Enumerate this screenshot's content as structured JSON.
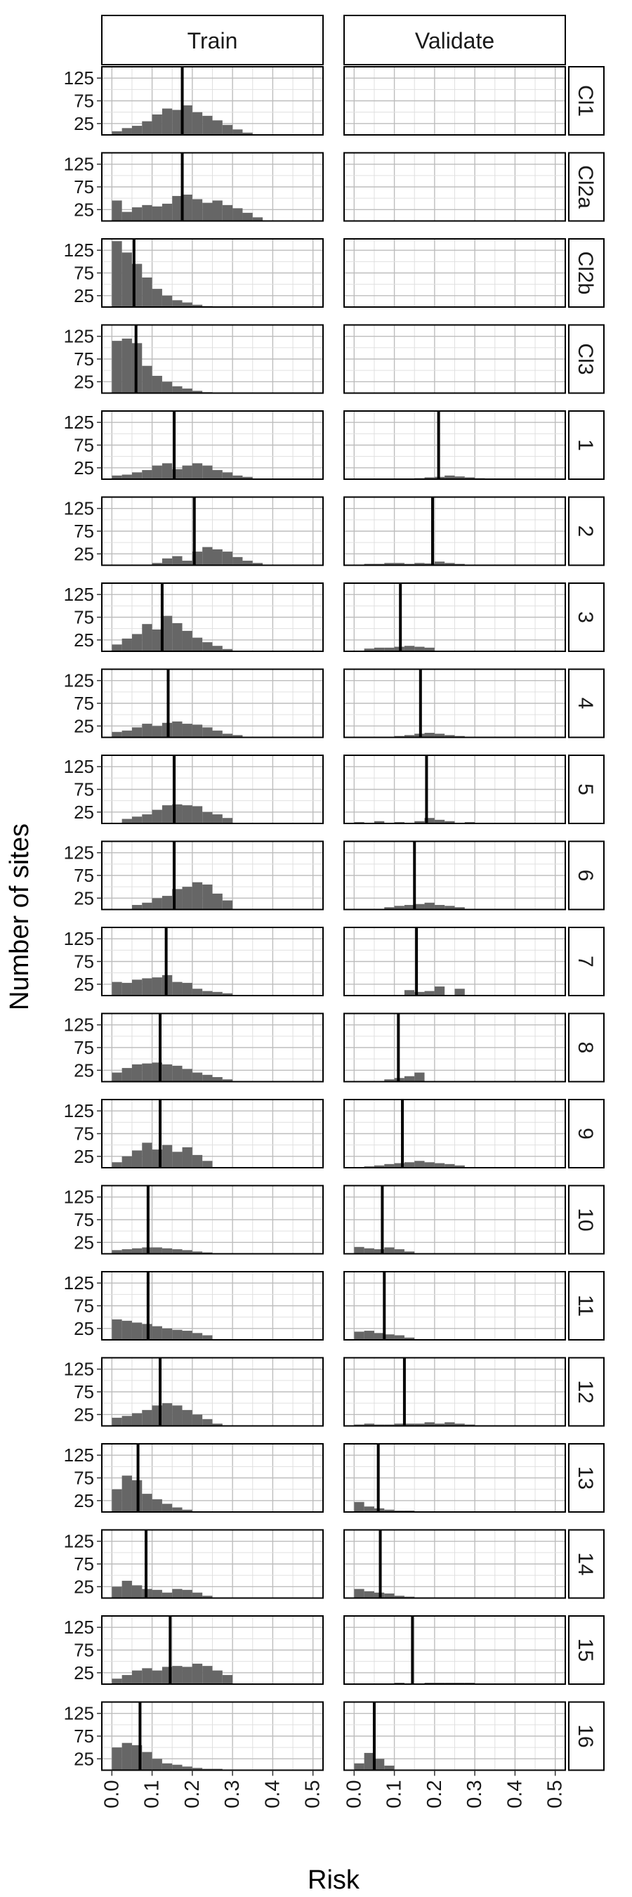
{
  "chart_data": {
    "type": "histogram",
    "facet_layout": "grid",
    "columns": [
      "Train",
      "Validate"
    ],
    "rows": [
      "Cl1",
      "Cl2a",
      "Cl2b",
      "Cl3",
      "1",
      "2",
      "3",
      "4",
      "5",
      "6",
      "7",
      "8",
      "9",
      "10",
      "11",
      "12",
      "13",
      "14",
      "15",
      "16"
    ],
    "ylabel": "Number of sites",
    "xlabel": "Risk",
    "xlim": [
      -0.025,
      0.525
    ],
    "ylim": [
      0,
      150
    ],
    "x_ticks": [
      "0.0",
      "0.1",
      "0.2",
      "0.3",
      "0.4",
      "0.5"
    ],
    "y_ticks": [
      "25",
      "75",
      "125"
    ],
    "bin_width": 0.025,
    "bin_starts": [
      0.0,
      0.025,
      0.05,
      0.075,
      0.1,
      0.125,
      0.15,
      0.175,
      0.2,
      0.225,
      0.25,
      0.275,
      0.3,
      0.325,
      0.35,
      0.375,
      0.4,
      0.425,
      0.45,
      0.475,
      0.5
    ],
    "grid": true,
    "colors": {
      "bar": "#666666",
      "panel_grid_major": "#bdbdbd",
      "panel_grid_minor": "#e0e0e0",
      "strip_bg": "#ffffff",
      "border": "#000000",
      "mean_line": "#000000"
    },
    "panels": [
      {
        "row": "Cl1",
        "column": "Train",
        "mean": 0.175,
        "counts": [
          8,
          15,
          20,
          30,
          45,
          58,
          55,
          65,
          50,
          42,
          32,
          22,
          12,
          5,
          0,
          0,
          0,
          0,
          0,
          0,
          0
        ]
      },
      {
        "row": "Cl1",
        "column": "Validate",
        "mean": null,
        "counts": []
      },
      {
        "row": "Cl2a",
        "column": "Train",
        "mean": 0.175,
        "counts": [
          45,
          20,
          30,
          35,
          32,
          38,
          55,
          58,
          48,
          40,
          45,
          35,
          28,
          18,
          8,
          0,
          0,
          0,
          0,
          0,
          0
        ]
      },
      {
        "row": "Cl2a",
        "column": "Validate",
        "mean": null,
        "counts": []
      },
      {
        "row": "Cl2b",
        "column": "Train",
        "mean": 0.055,
        "counts": [
          145,
          120,
          95,
          65,
          40,
          25,
          15,
          10,
          5,
          2,
          0,
          0,
          0,
          0,
          0,
          0,
          0,
          0,
          0,
          0,
          0
        ]
      },
      {
        "row": "Cl2b",
        "column": "Validate",
        "mean": null,
        "counts": []
      },
      {
        "row": "Cl3",
        "column": "Train",
        "mean": 0.06,
        "counts": [
          115,
          120,
          110,
          60,
          38,
          25,
          15,
          10,
          5,
          2,
          0,
          0,
          0,
          0,
          0,
          0,
          0,
          0,
          0,
          0,
          0
        ]
      },
      {
        "row": "Cl3",
        "column": "Validate",
        "mean": null,
        "counts": []
      },
      {
        "row": "1",
        "column": "Train",
        "mean": 0.155,
        "counts": [
          8,
          10,
          15,
          20,
          30,
          35,
          22,
          30,
          35,
          30,
          20,
          15,
          8,
          5,
          0,
          0,
          0,
          0,
          0,
          0,
          0
        ]
      },
      {
        "row": "1",
        "column": "Validate",
        "mean": 0.21,
        "counts": [
          0,
          0,
          0,
          0,
          0,
          0,
          2,
          4,
          5,
          8,
          6,
          4,
          2,
          0,
          0,
          0,
          0,
          0,
          0,
          0,
          0
        ]
      },
      {
        "row": "2",
        "column": "Train",
        "mean": 0.205,
        "counts": [
          0,
          0,
          0,
          0,
          5,
          15,
          20,
          10,
          30,
          40,
          35,
          30,
          18,
          10,
          5,
          0,
          0,
          0,
          0,
          0,
          0
        ]
      },
      {
        "row": "2",
        "column": "Validate",
        "mean": 0.195,
        "counts": [
          0,
          3,
          3,
          5,
          5,
          3,
          5,
          4,
          8,
          5,
          3,
          0,
          0,
          0,
          0,
          0,
          0,
          0,
          0,
          0,
          0
        ]
      },
      {
        "row": "3",
        "column": "Train",
        "mean": 0.125,
        "counts": [
          15,
          28,
          38,
          60,
          48,
          78,
          62,
          45,
          30,
          20,
          12,
          5,
          0,
          0,
          0,
          0,
          0,
          0,
          0,
          0,
          0
        ]
      },
      {
        "row": "3",
        "column": "Validate",
        "mean": 0.115,
        "counts": [
          0,
          6,
          8,
          8,
          10,
          12,
          10,
          8,
          0,
          0,
          0,
          0,
          0,
          0,
          0,
          0,
          0,
          0,
          0,
          0,
          0
        ]
      },
      {
        "row": "4",
        "column": "Train",
        "mean": 0.14,
        "counts": [
          12,
          15,
          22,
          30,
          25,
          32,
          35,
          30,
          28,
          22,
          15,
          8,
          5,
          0,
          0,
          0,
          0,
          0,
          0,
          0,
          0
        ]
      },
      {
        "row": "4",
        "column": "Validate",
        "mean": 0.165,
        "counts": [
          0,
          0,
          0,
          0,
          3,
          5,
          8,
          10,
          8,
          5,
          3,
          0,
          0,
          0,
          0,
          0,
          0,
          0,
          0,
          0,
          0
        ]
      },
      {
        "row": "5",
        "column": "Train",
        "mean": 0.155,
        "counts": [
          0,
          10,
          15,
          20,
          30,
          40,
          42,
          40,
          38,
          25,
          20,
          12,
          0,
          0,
          0,
          0,
          0,
          0,
          0,
          0,
          0
        ]
      },
      {
        "row": "5",
        "column": "Validate",
        "mean": 0.18,
        "counts": [
          3,
          0,
          5,
          0,
          3,
          0,
          5,
          12,
          8,
          5,
          0,
          3,
          0,
          0,
          0,
          0,
          0,
          0,
          0,
          0,
          0
        ]
      },
      {
        "row": "6",
        "column": "Train",
        "mean": 0.155,
        "counts": [
          0,
          0,
          10,
          15,
          25,
          30,
          45,
          50,
          60,
          55,
          35,
          20,
          0,
          0,
          0,
          0,
          0,
          0,
          0,
          0,
          0
        ]
      },
      {
        "row": "6",
        "column": "Validate",
        "mean": 0.15,
        "counts": [
          0,
          0,
          0,
          5,
          8,
          10,
          12,
          15,
          10,
          8,
          5,
          0,
          0,
          0,
          0,
          0,
          0,
          0,
          0,
          0,
          0
        ]
      },
      {
        "row": "7",
        "column": "Train",
        "mean": 0.135,
        "counts": [
          30,
          28,
          35,
          38,
          40,
          45,
          30,
          28,
          15,
          10,
          8,
          5,
          0,
          0,
          0,
          0,
          0,
          0,
          0,
          0,
          0
        ]
      },
      {
        "row": "7",
        "column": "Validate",
        "mean": 0.155,
        "counts": [
          0,
          0,
          0,
          0,
          0,
          12,
          8,
          10,
          20,
          0,
          15,
          0,
          0,
          0,
          0,
          0,
          0,
          0,
          0,
          0,
          0
        ]
      },
      {
        "row": "8",
        "column": "Train",
        "mean": 0.12,
        "counts": [
          20,
          30,
          38,
          40,
          42,
          38,
          35,
          28,
          20,
          15,
          10,
          5,
          0,
          0,
          0,
          0,
          0,
          0,
          0,
          0,
          0
        ]
      },
      {
        "row": "8",
        "column": "Validate",
        "mean": 0.11,
        "counts": [
          0,
          0,
          0,
          5,
          8,
          12,
          20,
          0,
          0,
          0,
          0,
          0,
          0,
          0,
          0,
          0,
          0,
          0,
          0,
          0,
          0
        ]
      },
      {
        "row": "9",
        "column": "Train",
        "mean": 0.12,
        "counts": [
          12,
          25,
          38,
          55,
          40,
          50,
          35,
          45,
          28,
          15,
          0,
          0,
          0,
          0,
          0,
          0,
          0,
          0,
          0,
          0,
          0
        ]
      },
      {
        "row": "9",
        "column": "Validate",
        "mean": 0.12,
        "counts": [
          0,
          3,
          5,
          8,
          10,
          12,
          15,
          12,
          10,
          8,
          5,
          0,
          0,
          0,
          0,
          0,
          0,
          0,
          0,
          0,
          0
        ]
      },
      {
        "row": "10",
        "column": "Train",
        "mean": 0.09,
        "counts": [
          8,
          10,
          12,
          14,
          14,
          12,
          10,
          8,
          5,
          3,
          0,
          0,
          0,
          0,
          0,
          0,
          0,
          0,
          0,
          0,
          0
        ]
      },
      {
        "row": "10",
        "column": "Validate",
        "mean": 0.07,
        "counts": [
          15,
          12,
          10,
          14,
          10,
          5,
          0,
          0,
          0,
          0,
          0,
          0,
          0,
          0,
          0,
          0,
          0,
          0,
          0,
          0,
          0
        ]
      },
      {
        "row": "11",
        "column": "Train",
        "mean": 0.09,
        "counts": [
          45,
          42,
          38,
          35,
          30,
          25,
          22,
          20,
          15,
          10,
          0,
          0,
          0,
          0,
          0,
          0,
          0,
          0,
          0,
          0,
          0
        ]
      },
      {
        "row": "11",
        "column": "Validate",
        "mean": 0.075,
        "counts": [
          18,
          20,
          15,
          12,
          10,
          5,
          0,
          0,
          0,
          0,
          0,
          0,
          0,
          0,
          0,
          0,
          0,
          0,
          0,
          0,
          0
        ]
      },
      {
        "row": "12",
        "column": "Train",
        "mean": 0.12,
        "counts": [
          18,
          22,
          28,
          35,
          45,
          50,
          45,
          35,
          25,
          15,
          5,
          0,
          0,
          0,
          0,
          0,
          0,
          0,
          0,
          0,
          0
        ]
      },
      {
        "row": "12",
        "column": "Validate",
        "mean": 0.125,
        "counts": [
          3,
          5,
          3,
          3,
          5,
          5,
          5,
          8,
          5,
          8,
          5,
          3,
          0,
          0,
          0,
          0,
          0,
          0,
          0,
          0,
          0
        ]
      },
      {
        "row": "13",
        "column": "Train",
        "mean": 0.065,
        "counts": [
          50,
          80,
          70,
          40,
          28,
          18,
          10,
          5,
          0,
          0,
          0,
          0,
          0,
          0,
          0,
          0,
          0,
          0,
          0,
          0,
          0
        ]
      },
      {
        "row": "13",
        "column": "Validate",
        "mean": 0.06,
        "counts": [
          22,
          12,
          8,
          5,
          3,
          3,
          0,
          0,
          0,
          0,
          0,
          0,
          0,
          0,
          0,
          0,
          0,
          0,
          0,
          0,
          0
        ]
      },
      {
        "row": "14",
        "column": "Train",
        "mean": 0.085,
        "counts": [
          25,
          38,
          28,
          20,
          18,
          12,
          20,
          18,
          12,
          5,
          0,
          0,
          0,
          0,
          0,
          0,
          0,
          0,
          0,
          0,
          0
        ]
      },
      {
        "row": "14",
        "column": "Validate",
        "mean": 0.065,
        "counts": [
          20,
          15,
          12,
          10,
          5,
          3,
          0,
          0,
          0,
          0,
          0,
          0,
          0,
          0,
          0,
          0,
          0,
          0,
          0,
          0,
          0
        ]
      },
      {
        "row": "15",
        "column": "Train",
        "mean": 0.145,
        "counts": [
          12,
          20,
          30,
          35,
          30,
          38,
          40,
          38,
          45,
          40,
          30,
          20,
          0,
          0,
          0,
          0,
          0,
          0,
          0,
          0,
          0
        ]
      },
      {
        "row": "15",
        "column": "Validate",
        "mean": 0.145,
        "counts": [
          0,
          0,
          0,
          0,
          3,
          0,
          0,
          3,
          3,
          3,
          3,
          3,
          0,
          0,
          0,
          0,
          0,
          0,
          0,
          0,
          0
        ]
      },
      {
        "row": "16",
        "column": "Train",
        "mean": 0.07,
        "counts": [
          50,
          60,
          55,
          40,
          25,
          15,
          12,
          8,
          5,
          3,
          3,
          0,
          0,
          0,
          0,
          0,
          0,
          0,
          0,
          0,
          0
        ]
      },
      {
        "row": "16",
        "column": "Validate",
        "mean": 0.05,
        "counts": [
          15,
          38,
          25,
          10,
          0,
          0,
          0,
          0,
          0,
          0,
          0,
          0,
          0,
          0,
          0,
          0,
          0,
          0,
          0,
          0,
          0
        ]
      }
    ]
  }
}
